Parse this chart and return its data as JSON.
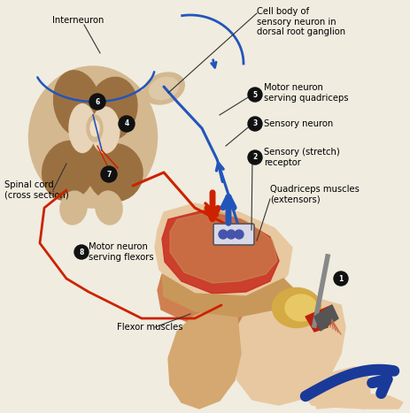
{
  "bg_color": "#f0ece0",
  "colors": {
    "red_nerve": "#cc2200",
    "blue_nerve": "#2255bb",
    "skin_light": "#e8c8a0",
    "skin_medium": "#d4a870",
    "muscle_red": "#c83020",
    "muscle_red2": "#e04030",
    "muscle_tan": "#c8985a",
    "knee_yellow": "#d4aa44",
    "dark_brown": "#7a4a18",
    "spinal_outer": "#d4b890",
    "spinal_gray": "#9b7040",
    "spinal_white": "#e8d4b8",
    "arrow_blue": "#1a3a99",
    "arrow_red": "#cc1100",
    "label_black": "#111111",
    "line_black": "#333333",
    "hammer_gray": "#888888",
    "hammer_dark": "#555555"
  },
  "labels": {
    "interneuron": "Interneuron",
    "cell_body": "Cell body of\nsensory neuron in\ndorsal root ganglion",
    "motor_quad": "Motor neuron\nserving quadriceps",
    "sensory_neuron": "Sensory neuron",
    "sensory_receptor": "Sensory (stretch)\nreceptor",
    "quadriceps": "Quadriceps muscles\n(extensors)",
    "flexor": "Flexor muscles",
    "spinal_cord": "Spinal cord\n(cross section)",
    "motor_flexor": "Motor neuron\nserving flexors"
  }
}
